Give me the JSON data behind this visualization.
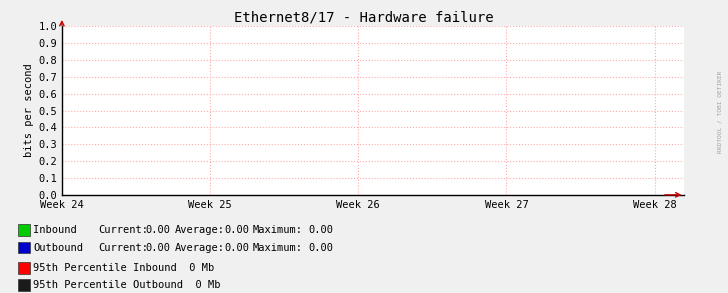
{
  "title": "Ethernet8/17 - Hardware failure",
  "ylabel": "bits per second",
  "background_color": "#f0f0f0",
  "plot_bg_color": "#ffffff",
  "grid_color": "#ffaaaa",
  "axis_color": "#000000",
  "x_tick_labels": [
    "Week 24",
    "Week 25",
    "Week 26",
    "Week 27",
    "Week 28"
  ],
  "x_tick_positions": [
    0.0,
    1.0,
    2.0,
    3.0,
    4.0
  ],
  "ylim": [
    0.0,
    1.0
  ],
  "yticks": [
    0.0,
    0.1,
    0.2,
    0.3,
    0.4,
    0.5,
    0.6,
    0.7,
    0.8,
    0.9,
    1.0
  ],
  "xlim": [
    0.0,
    4.2
  ],
  "legend_items": [
    {
      "label": "Inbound ",
      "color": "#00cc00"
    },
    {
      "label": "Outbound",
      "color": "#0000cc"
    }
  ],
  "legend_stats": [
    {
      "current": "0.00",
      "average": "0.00",
      "maximum": "0.00"
    },
    {
      "current": "0.00",
      "average": "0.00",
      "maximum": "0.00"
    }
  ],
  "percentile_items": [
    {
      "label": "95th Percentile Inbound",
      "value": "0 Mb",
      "color": "#ff0000"
    },
    {
      "label": "95th Percentile Outbound",
      "value": "0 Mb",
      "color": "#1a1a1a"
    }
  ],
  "watermark_line1": "RRDTOOL",
  "watermark_line2": "/",
  "watermark_line3": "TOBI OETIKER",
  "arrow_color": "#cc0000",
  "spine_color": "#000000",
  "title_fontsize": 10,
  "label_fontsize": 7.5,
  "tick_fontsize": 7.5,
  "legend_fontsize": 7.5,
  "sq_size": 0.012
}
